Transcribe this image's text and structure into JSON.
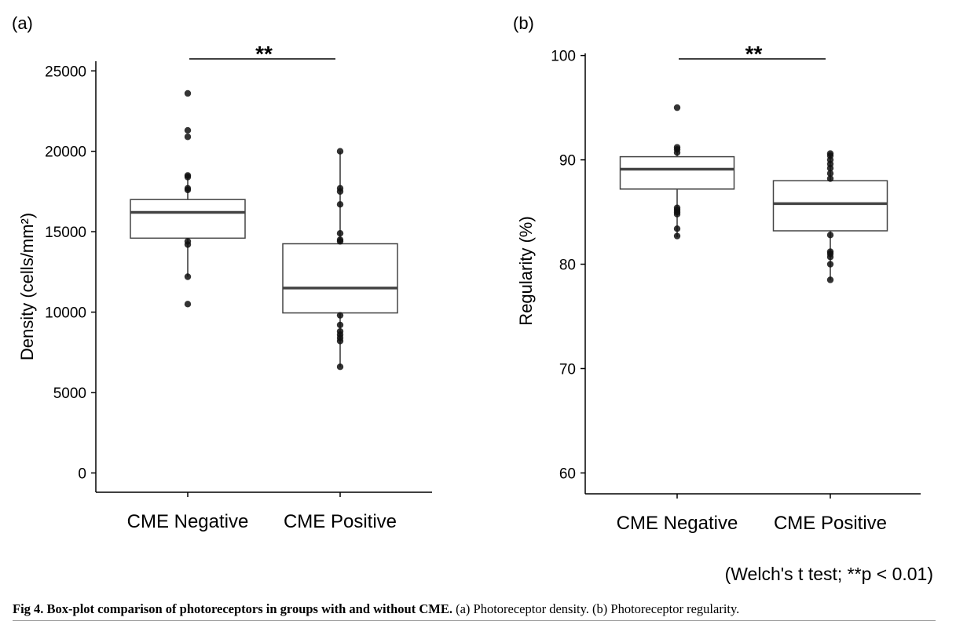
{
  "figure": {
    "note": "(Welch's t test; **p < 0.01)",
    "caption_title": "Fig 4. Box-plot comparison of photoreceptors in groups with and without CME.",
    "caption_text": "(a) Photoreceptor density. (b) Photoreceptor regularity."
  },
  "chart_data": [
    {
      "type": "box",
      "panel_label": "(a)",
      "ylabel": "Density (cells/mm²)",
      "ylim": [
        -1200,
        25600
      ],
      "yticks": [
        0,
        5000,
        10000,
        15000,
        20000,
        25000
      ],
      "categories": [
        "CME Negative",
        "CME Positive"
      ],
      "significance": "**",
      "boxes": [
        {
          "category": "CME Negative",
          "whisker_low": 12200,
          "q1": 14600,
          "median": 16200,
          "q3": 17000,
          "whisker_high": 18600,
          "outliers": [
            23600,
            21300,
            20900,
            18500,
            18400,
            17700,
            17600,
            14200,
            14400,
            12200,
            10500
          ]
        },
        {
          "category": "CME Positive",
          "whisker_low": 6600,
          "q1": 9950,
          "median": 11500,
          "q3": 14250,
          "whisker_high": 20000,
          "outliers": [
            20000,
            17700,
            17500,
            16700,
            14900,
            14500,
            14400,
            9800,
            9200,
            8800,
            8600,
            8400,
            8200,
            6600
          ]
        }
      ]
    },
    {
      "type": "box",
      "panel_label": "(b)",
      "ylabel": "Regularity (%)",
      "ylim": [
        58,
        100.2
      ],
      "yticks": [
        60,
        70,
        80,
        90,
        100
      ],
      "categories": [
        "CME Negative",
        "CME Positive"
      ],
      "significance": "**",
      "boxes": [
        {
          "category": "CME Negative",
          "whisker_low": 82.6,
          "q1": 87.2,
          "median": 89.1,
          "q3": 90.3,
          "whisker_high": 91.2,
          "outliers": [
            95,
            91.2,
            91.0,
            90.7,
            85.4,
            85.2,
            85.0,
            84.8,
            83.4,
            82.7
          ]
        },
        {
          "category": "CME Positive",
          "whisker_low": 78.5,
          "q1": 83.2,
          "median": 85.8,
          "q3": 88.0,
          "whisker_high": 90.6,
          "outliers": [
            90.6,
            90.4,
            90.0,
            89.6,
            89.2,
            88.7,
            88.2,
            82.8,
            81.2,
            81.0,
            80.7,
            80.0,
            78.5
          ]
        }
      ]
    }
  ]
}
